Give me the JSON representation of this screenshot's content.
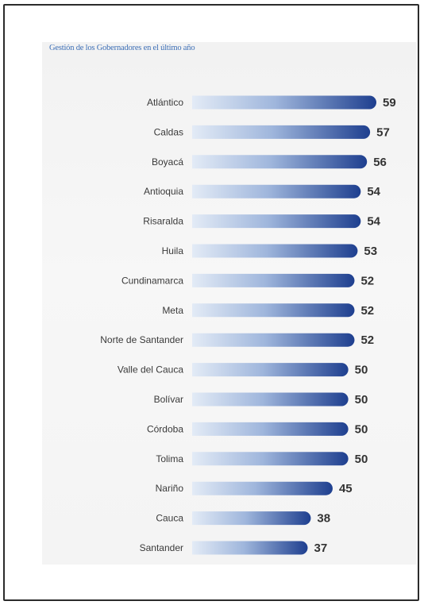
{
  "chart_data": {
    "type": "bar",
    "orientation": "horizontal",
    "title": "Gestión de los Gobernadores en el último año",
    "categories": [
      "Atlántico",
      "Caldas",
      "Boyacá",
      "Antioquia",
      "Risaralda",
      "Huila",
      "Cundinamarca",
      "Meta",
      "Norte de Santander",
      "Valle del Cauca",
      "Bolívar",
      "Córdoba",
      "Tolima",
      "Nariño",
      "Cauca",
      "Santander"
    ],
    "values": [
      59,
      57,
      56,
      54,
      54,
      53,
      52,
      52,
      52,
      50,
      50,
      50,
      50,
      45,
      38,
      37
    ],
    "xlim": [
      0,
      60
    ],
    "grid": false,
    "colors": {
      "bar_light": "#dfe8f4",
      "bar_dark": "#1e3f8f",
      "title": "#3d6fb6",
      "text": "#3a3a3a"
    }
  }
}
